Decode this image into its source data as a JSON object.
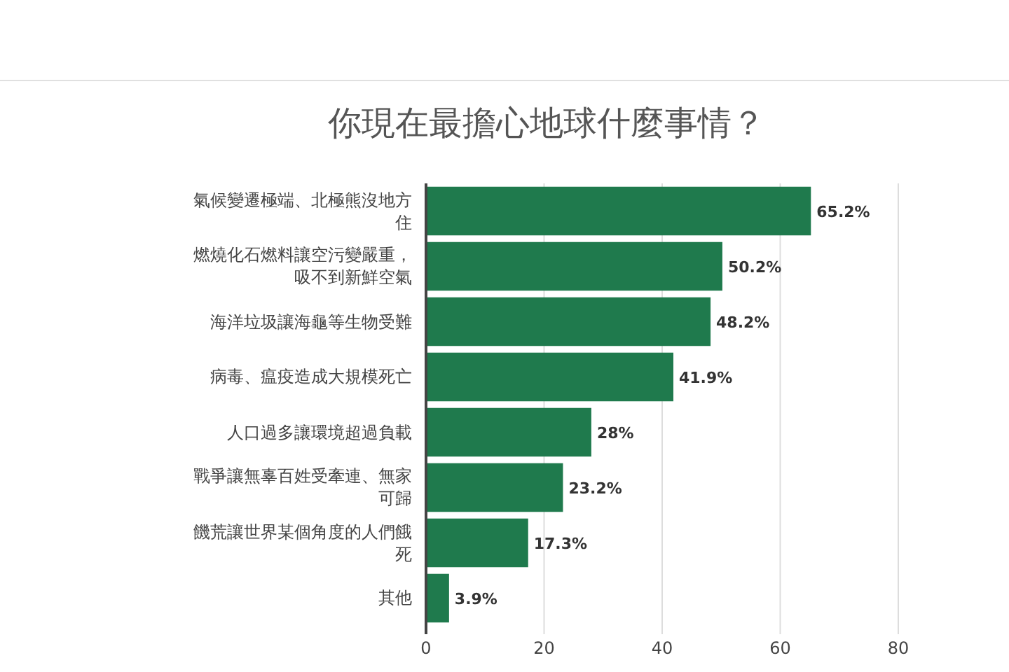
{
  "chart_data": {
    "type": "bar",
    "orientation": "horizontal",
    "title": "你現在最擔心地球什麼事情？",
    "categories": [
      "氣候變遷極端、北極熊沒地方住",
      "燃燒化石燃料讓空污變嚴重，吸不到新鮮空氣",
      "海洋垃圾讓海龜等生物受難",
      "病毒、瘟疫造成大規模死亡",
      "人口過多讓環境超過負載",
      "戰爭讓無辜百姓受牽連、無家可歸",
      "饑荒讓世界某個角度的人們餓死",
      "其他"
    ],
    "values": [
      65.2,
      50.2,
      48.2,
      41.9,
      28,
      23.2,
      17.3,
      3.9
    ],
    "value_labels": [
      "65.2%",
      "50.2%",
      "48.2%",
      "41.9%",
      "28%",
      "23.2%",
      "17.3%",
      "3.9%"
    ],
    "color": "#1f7a4d",
    "xlim": [
      0,
      80
    ],
    "xticks": [
      0,
      20,
      40,
      60,
      80
    ],
    "grid": "x"
  }
}
